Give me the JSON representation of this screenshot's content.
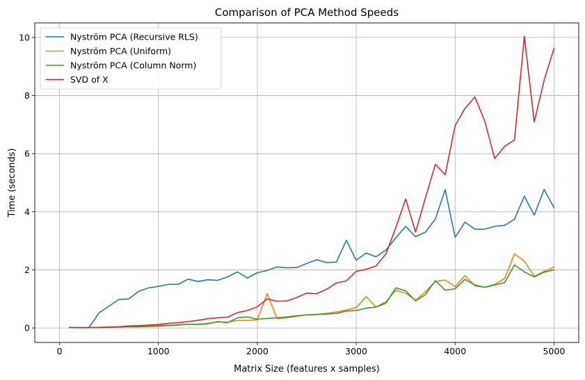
{
  "chart_data": {
    "type": "line",
    "title": "Comparison of PCA Method Speeds",
    "xlabel": "Matrix Size (features x samples)",
    "ylabel": "Time (seconds)",
    "xlim": [
      -250,
      5250
    ],
    "ylim": [
      -0.5,
      10.5
    ],
    "xticks": [
      0,
      1000,
      2000,
      3000,
      4000,
      5000
    ],
    "yticks": [
      0,
      2,
      4,
      6,
      8,
      10
    ],
    "grid": true,
    "legend_position": "top-left",
    "x": [
      100,
      200,
      300,
      400,
      500,
      600,
      700,
      800,
      900,
      1000,
      1100,
      1200,
      1300,
      1400,
      1500,
      1600,
      1700,
      1800,
      1900,
      2000,
      2100,
      2200,
      2300,
      2400,
      2500,
      2600,
      2700,
      2800,
      2900,
      3000,
      3100,
      3200,
      3300,
      3400,
      3500,
      3600,
      3700,
      3800,
      3900,
      4000,
      4100,
      4200,
      4300,
      4400,
      4500,
      4600,
      4700,
      4800,
      4900,
      5000
    ],
    "series": [
      {
        "name": "Nyström PCA (Recursive RLS)",
        "color": "#1f77b4",
        "values": [
          0.01,
          0.01,
          0.02,
          0.52,
          0.75,
          0.98,
          1.0,
          1.26,
          1.38,
          1.43,
          1.5,
          1.5,
          1.68,
          1.6,
          1.66,
          1.64,
          1.76,
          1.93,
          1.72,
          1.9,
          1.98,
          2.1,
          2.07,
          2.08,
          2.22,
          2.35,
          2.25,
          2.27,
          3.02,
          2.33,
          2.58,
          2.45,
          2.68,
          3.1,
          3.5,
          3.14,
          3.3,
          3.75,
          4.76,
          3.12,
          3.64,
          3.4,
          3.4,
          3.5,
          3.53,
          3.74,
          4.54,
          3.88,
          4.77,
          4.14
        ]
      },
      {
        "name": "Nyström PCA (Uniform)",
        "color": "#ff7f0e",
        "values": [
          0.01,
          0.01,
          0.01,
          0.02,
          0.03,
          0.04,
          0.05,
          0.06,
          0.08,
          0.09,
          0.1,
          0.11,
          0.13,
          0.13,
          0.16,
          0.2,
          0.2,
          0.26,
          0.26,
          0.28,
          1.18,
          0.32,
          0.35,
          0.4,
          0.45,
          0.47,
          0.5,
          0.55,
          0.62,
          0.7,
          1.08,
          0.72,
          0.9,
          1.3,
          1.2,
          0.95,
          1.25,
          1.6,
          1.65,
          1.42,
          1.8,
          1.45,
          1.4,
          1.5,
          1.7,
          2.55,
          2.3,
          1.78,
          1.95,
          2.1
        ]
      },
      {
        "name": "Nyström PCA (Column Norm)",
        "color": "#2ca02c",
        "values": [
          0.01,
          0.01,
          0.01,
          0.01,
          0.02,
          0.03,
          0.04,
          0.04,
          0.05,
          0.06,
          0.08,
          0.1,
          0.13,
          0.12,
          0.14,
          0.22,
          0.18,
          0.35,
          0.38,
          0.3,
          0.33,
          0.35,
          0.38,
          0.42,
          0.45,
          0.46,
          0.48,
          0.5,
          0.58,
          0.6,
          0.68,
          0.72,
          0.85,
          1.38,
          1.28,
          0.93,
          1.15,
          1.63,
          1.3,
          1.35,
          1.67,
          1.48,
          1.4,
          1.48,
          1.56,
          2.17,
          1.93,
          1.76,
          1.92,
          2.0
        ]
      },
      {
        "name": "SVD of X",
        "color": "#d62728",
        "values": [
          0.02,
          0.01,
          0.01,
          0.02,
          0.03,
          0.04,
          0.07,
          0.08,
          0.1,
          0.12,
          0.16,
          0.18,
          0.22,
          0.26,
          0.32,
          0.35,
          0.37,
          0.53,
          0.6,
          0.73,
          1.0,
          0.92,
          0.93,
          1.05,
          1.2,
          1.18,
          1.33,
          1.55,
          1.62,
          1.95,
          2.02,
          2.13,
          2.55,
          3.45,
          4.44,
          3.3,
          4.48,
          5.63,
          5.28,
          6.97,
          7.56,
          7.95,
          7.12,
          5.83,
          6.25,
          6.47,
          10.04,
          7.09,
          8.53,
          9.62
        ]
      }
    ]
  }
}
